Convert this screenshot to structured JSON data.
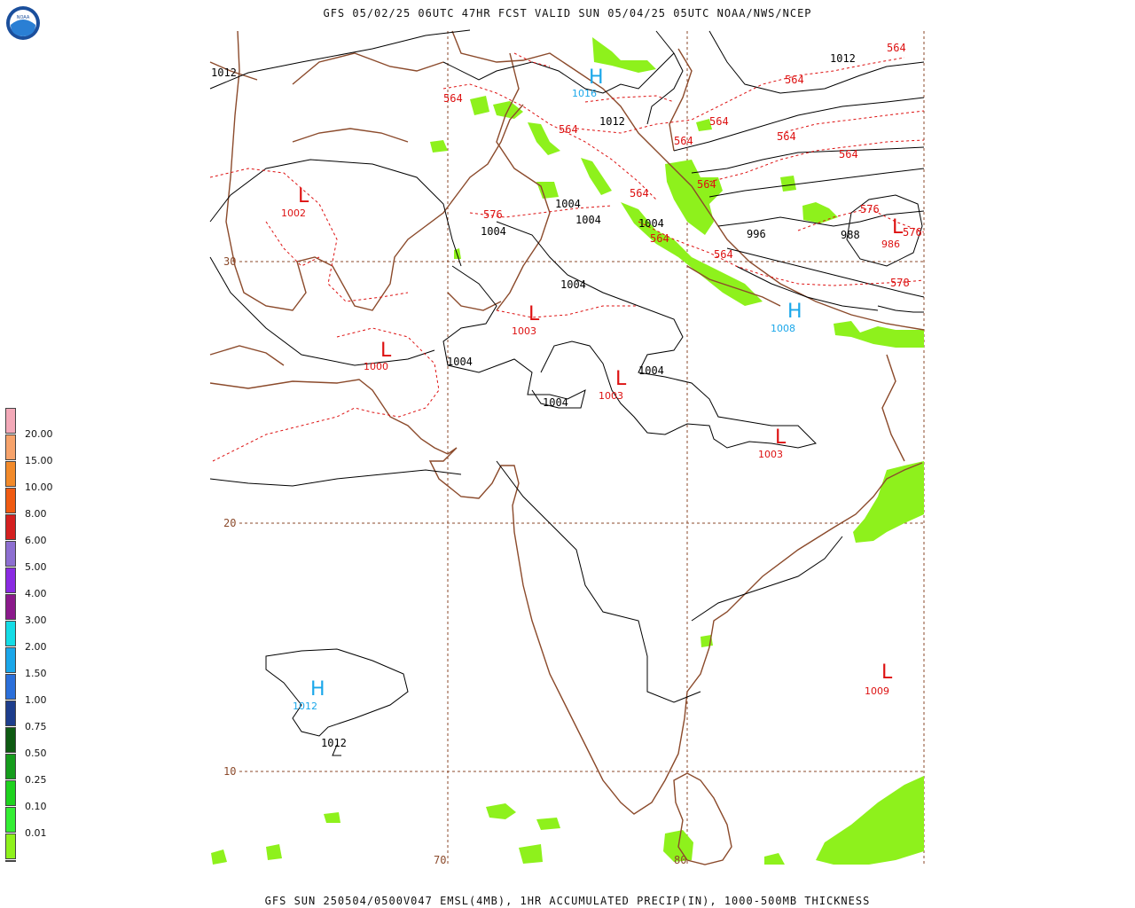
{
  "header": {
    "title": "GFS 05/02/25 06UTC 47HR FCST VALID SUN 05/04/25 05UTC NOAA/NWS/NCEP"
  },
  "footer": {
    "text": "GFS SUN 250504/0500V047 EMSL(4MB), 1HR ACCUMULATED PRECIP(IN), 1000-500MB THICKNESS"
  },
  "logo": {
    "text": "NOAA",
    "colors": {
      "ring": "#1b4f9c",
      "bird": "#ffffff",
      "inner": "#2a7fd4"
    }
  },
  "legend": {
    "labels": [
      "20.00",
      "15.00",
      "10.00",
      "8.00",
      "6.00",
      "5.00",
      "4.00",
      "3.00",
      "2.00",
      "1.50",
      "1.00",
      "0.75",
      "0.50",
      "0.25",
      "0.10",
      "0.01"
    ],
    "colors": [
      "#f3a9b8",
      "#f7a36b",
      "#f28a2a",
      "#ef5a12",
      "#d42020",
      "#a11b1b",
      "#8d6fd1",
      "#8a2be2",
      "#8b1a8b",
      "#14dce6",
      "#1aa7ea",
      "#2b6fda",
      "#1d3d8c",
      "#0e5a12",
      "#159c1c",
      "#1ed21e",
      "#33ee33",
      "#8ef11c",
      "#ffffff"
    ]
  },
  "grid": {
    "lat_labels": [
      "30",
      "20",
      "10"
    ],
    "lon_labels": [
      "70",
      "80"
    ]
  },
  "pressure_labels": [
    "1012",
    "1016",
    "1012",
    "1012",
    "1004",
    "1004",
    "1004",
    "1004",
    "1004",
    "1004",
    "1004",
    "1004",
    "996",
    "988",
    "1012",
    "1012"
  ],
  "thickness_labels": [
    "564",
    "564",
    "564",
    "564",
    "564",
    "564",
    "564",
    "564",
    "564",
    "564",
    "564",
    "564",
    "576",
    "576",
    "576",
    "578"
  ],
  "centers": {
    "lows": [
      {
        "symbol": "L",
        "value": "1002"
      },
      {
        "symbol": "L",
        "value": "1000"
      },
      {
        "symbol": "L",
        "value": "1003"
      },
      {
        "symbol": "L",
        "value": "1003"
      },
      {
        "symbol": "L",
        "value": "1003"
      },
      {
        "symbol": "L",
        "value": "986"
      },
      {
        "symbol": "L",
        "value": "1009"
      }
    ],
    "highs": [
      {
        "symbol": "H",
        "value": "1016"
      },
      {
        "symbol": "H",
        "value": "1008"
      },
      {
        "symbol": "H",
        "value": "1012"
      }
    ]
  },
  "colors": {
    "coast": "#8b4a2b",
    "grid": "#8b4a2b",
    "isobar": "#000000",
    "thickness": "#dd1111",
    "low": "#dd1111",
    "high": "#1aa7ea",
    "precip": "#8ef11c"
  }
}
